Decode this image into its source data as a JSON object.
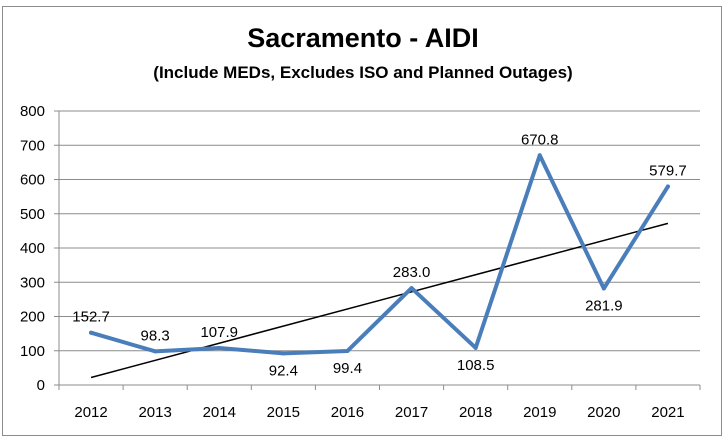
{
  "chart_data": {
    "type": "line",
    "title": "Sacramento - AIDI",
    "subtitle": "(Include MEDs, Excludes ISO and Planned Outages)",
    "categories": [
      "2012",
      "2013",
      "2014",
      "2015",
      "2016",
      "2017",
      "2018",
      "2019",
      "2020",
      "2021"
    ],
    "series": [
      {
        "values": [
          152.7,
          98.3,
          107.9,
          92.4,
          99.4,
          283.0,
          108.5,
          670.8,
          281.9,
          579.7
        ],
        "labels": [
          "152.7",
          "98.3",
          "107.9",
          "92.4",
          "99.4",
          "283.0",
          "108.5",
          "670.8",
          "281.9",
          "579.7"
        ],
        "color": "#4a7ebb"
      }
    ],
    "trendline": {
      "type": "linear",
      "start": 22,
      "end": 472,
      "color": "#000000"
    },
    "ylim": [
      0,
      800
    ],
    "yticks": [
      "0",
      "100",
      "200",
      "300",
      "400",
      "500",
      "600",
      "700",
      "800"
    ],
    "xlabel": "",
    "ylabel": "",
    "grid": true,
    "legend": "none"
  }
}
